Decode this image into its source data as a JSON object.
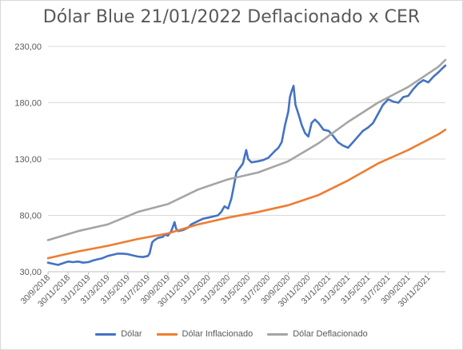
{
  "chart_data": {
    "type": "line",
    "title": "Dólar Blue 21/01/2022  Deflacionado x CER",
    "xlabel": "",
    "ylabel": "",
    "ylim": [
      30,
      230
    ],
    "y_ticks": [
      "30,00",
      "80,00",
      "130,00",
      "180,00",
      "230,00"
    ],
    "y_tick_values": [
      30,
      80,
      130,
      180,
      230
    ],
    "x_ticks": [
      "30/9/2018",
      "30/11/2018",
      "31/1/2019",
      "31/3/2019",
      "31/5/2019",
      "31/7/2019",
      "30/9/2019",
      "30/11/2019",
      "31/1/2020",
      "31/3/2020",
      "31/5/2020",
      "31/7/2020",
      "30/9/2020",
      "30/11/2020",
      "31/1/2021",
      "31/3/2021",
      "31/5/2021",
      "31/7/2021",
      "30/9/2021",
      "30/11/2021"
    ],
    "xlim": [
      "2018-09-30",
      "2022-01-21"
    ],
    "grid": "horizontal",
    "legend_position": "bottom",
    "series": [
      {
        "name": "Dólar",
        "color": "#4472c4",
        "points": [
          [
            "2018-09-30",
            38
          ],
          [
            "2018-10-15",
            37
          ],
          [
            "2018-10-31",
            36
          ],
          [
            "2018-11-15",
            37.5
          ],
          [
            "2018-11-30",
            39
          ],
          [
            "2018-12-15",
            38.5
          ],
          [
            "2018-12-31",
            39
          ],
          [
            "2019-01-15",
            38
          ],
          [
            "2019-01-31",
            38.5
          ],
          [
            "2019-02-15",
            40
          ],
          [
            "2019-02-28",
            41
          ],
          [
            "2019-03-15",
            42
          ],
          [
            "2019-03-31",
            44
          ],
          [
            "2019-04-15",
            45
          ],
          [
            "2019-04-30",
            46
          ],
          [
            "2019-05-15",
            46
          ],
          [
            "2019-05-31",
            45.5
          ],
          [
            "2019-06-15",
            44.5
          ],
          [
            "2019-06-30",
            43.5
          ],
          [
            "2019-07-15",
            43
          ],
          [
            "2019-07-31",
            44
          ],
          [
            "2019-08-05",
            46
          ],
          [
            "2019-08-13",
            56
          ],
          [
            "2019-08-20",
            58
          ],
          [
            "2019-08-31",
            60
          ],
          [
            "2019-09-15",
            61
          ],
          [
            "2019-09-20",
            63
          ],
          [
            "2019-09-30",
            62
          ],
          [
            "2019-10-10",
            66
          ],
          [
            "2019-10-20",
            74
          ],
          [
            "2019-10-25",
            68
          ],
          [
            "2019-10-31",
            66
          ],
          [
            "2019-11-15",
            67
          ],
          [
            "2019-11-30",
            69
          ],
          [
            "2019-12-10",
            72
          ],
          [
            "2019-12-31",
            75
          ],
          [
            "2020-01-15",
            77
          ],
          [
            "2020-01-31",
            78
          ],
          [
            "2020-02-15",
            79
          ],
          [
            "2020-02-29",
            80
          ],
          [
            "2020-03-10",
            83
          ],
          [
            "2020-03-20",
            88
          ],
          [
            "2020-03-31",
            86
          ],
          [
            "2020-04-10",
            95
          ],
          [
            "2020-04-20",
            110
          ],
          [
            "2020-04-25",
            118
          ],
          [
            "2020-05-05",
            122
          ],
          [
            "2020-05-15",
            126
          ],
          [
            "2020-05-20",
            132
          ],
          [
            "2020-05-25",
            138
          ],
          [
            "2020-05-31",
            130
          ],
          [
            "2020-06-10",
            127
          ],
          [
            "2020-06-30",
            128
          ],
          [
            "2020-07-15",
            129
          ],
          [
            "2020-07-31",
            131
          ],
          [
            "2020-08-10",
            134
          ],
          [
            "2020-08-20",
            137
          ],
          [
            "2020-08-31",
            140
          ],
          [
            "2020-09-10",
            145
          ],
          [
            "2020-09-20",
            160
          ],
          [
            "2020-09-30",
            172
          ],
          [
            "2020-10-05",
            185
          ],
          [
            "2020-10-10",
            190
          ],
          [
            "2020-10-16",
            195
          ],
          [
            "2020-10-22",
            178
          ],
          [
            "2020-10-31",
            170
          ],
          [
            "2020-11-10",
            160
          ],
          [
            "2020-11-20",
            153
          ],
          [
            "2020-11-30",
            150
          ],
          [
            "2020-12-10",
            162
          ],
          [
            "2020-12-20",
            165
          ],
          [
            "2020-12-31",
            162
          ],
          [
            "2021-01-15",
            156
          ],
          [
            "2021-01-31",
            155
          ],
          [
            "2021-02-15",
            150
          ],
          [
            "2021-02-28",
            145
          ],
          [
            "2021-03-15",
            142
          ],
          [
            "2021-03-31",
            140
          ],
          [
            "2021-04-15",
            145
          ],
          [
            "2021-04-30",
            150
          ],
          [
            "2021-05-15",
            155
          ],
          [
            "2021-05-31",
            158
          ],
          [
            "2021-06-15",
            162
          ],
          [
            "2021-06-30",
            170
          ],
          [
            "2021-07-15",
            178
          ],
          [
            "2021-07-31",
            183
          ],
          [
            "2021-08-15",
            181
          ],
          [
            "2021-08-31",
            180
          ],
          [
            "2021-09-15",
            185
          ],
          [
            "2021-09-30",
            186
          ],
          [
            "2021-10-15",
            192
          ],
          [
            "2021-10-31",
            197
          ],
          [
            "2021-11-15",
            200
          ],
          [
            "2021-11-30",
            198
          ],
          [
            "2021-12-15",
            203
          ],
          [
            "2021-12-31",
            207
          ],
          [
            "2022-01-10",
            210
          ],
          [
            "2022-01-21",
            213
          ]
        ]
      },
      {
        "name": "Dólar Inflacionado",
        "color": "#ed7d31",
        "points": [
          [
            "2018-09-30",
            42
          ],
          [
            "2018-12-31",
            48
          ],
          [
            "2019-03-31",
            53
          ],
          [
            "2019-06-30",
            59
          ],
          [
            "2019-09-30",
            64
          ],
          [
            "2019-12-31",
            72
          ],
          [
            "2020-03-31",
            78
          ],
          [
            "2020-06-30",
            83
          ],
          [
            "2020-09-30",
            89
          ],
          [
            "2020-12-31",
            98
          ],
          [
            "2021-03-31",
            111
          ],
          [
            "2021-06-30",
            126
          ],
          [
            "2021-09-30",
            138
          ],
          [
            "2021-12-31",
            152
          ],
          [
            "2022-01-21",
            156
          ]
        ]
      },
      {
        "name": "Dólar Deflacionado",
        "color": "#a5a5a5",
        "points": [
          [
            "2018-09-30",
            58
          ],
          [
            "2018-12-31",
            66
          ],
          [
            "2019-03-31",
            72
          ],
          [
            "2019-06-30",
            83
          ],
          [
            "2019-09-30",
            90
          ],
          [
            "2019-12-31",
            103
          ],
          [
            "2020-03-31",
            112
          ],
          [
            "2020-06-30",
            118
          ],
          [
            "2020-09-30",
            128
          ],
          [
            "2020-12-31",
            144
          ],
          [
            "2021-03-31",
            163
          ],
          [
            "2021-06-30",
            180
          ],
          [
            "2021-09-30",
            194
          ],
          [
            "2021-12-31",
            212
          ],
          [
            "2022-01-21",
            218
          ]
        ]
      }
    ]
  }
}
